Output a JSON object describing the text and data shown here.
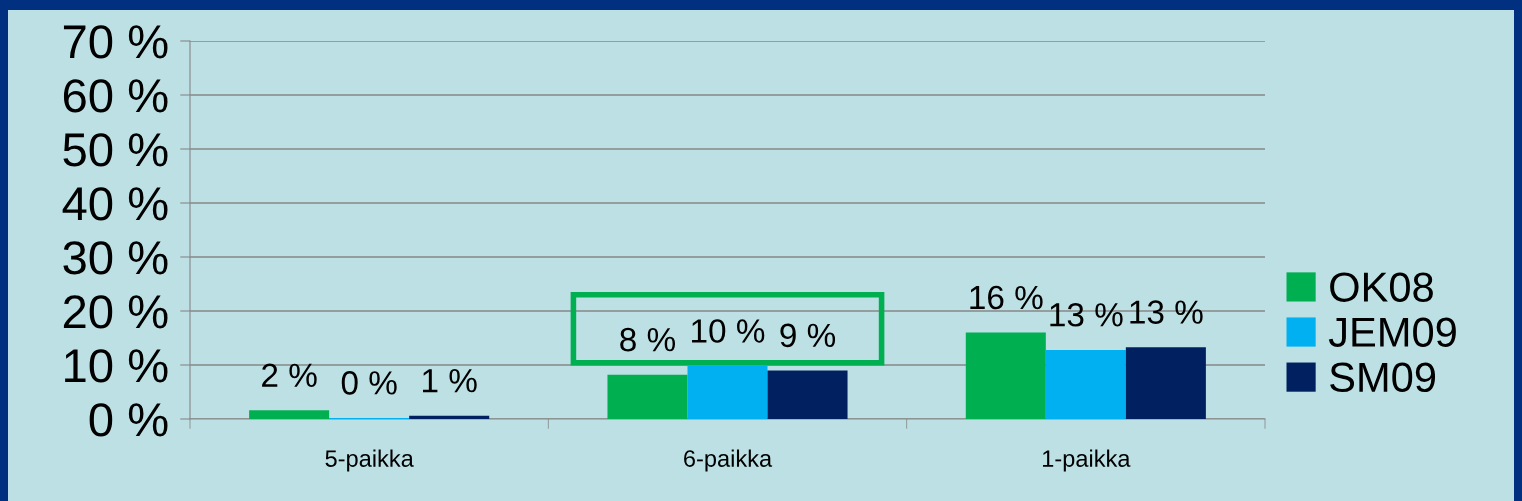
{
  "chart_data": {
    "type": "bar",
    "categories": [
      "5-paikka",
      "6-paikka",
      "1-paikka"
    ],
    "series": [
      {
        "name": "OK08",
        "color": "#00b050",
        "values": [
          1.6,
          8.2,
          16
        ],
        "value_labels": [
          "2 %",
          "8 %",
          "16 %"
        ]
      },
      {
        "name": "JEM09",
        "color": "#00b0f0",
        "values": [
          0.2,
          9.8,
          12.8
        ],
        "value_labels": [
          "0 %",
          "10 %",
          "13 %"
        ]
      },
      {
        "name": "SM09",
        "color": "#002060",
        "values": [
          0.6,
          9,
          13.3
        ],
        "value_labels": [
          "1 %",
          "9 %",
          "13 %"
        ]
      }
    ],
    "ylim": [
      0,
      70
    ],
    "yticks": [
      {
        "value": 0,
        "label": "0 %"
      },
      {
        "value": 10,
        "label": "10 %"
      },
      {
        "value": 20,
        "label": "20 %"
      },
      {
        "value": 30,
        "label": "30 %"
      },
      {
        "value": 40,
        "label": "40 %"
      },
      {
        "value": 50,
        "label": "50 %"
      },
      {
        "value": 60,
        "label": "60 %"
      },
      {
        "value": 70,
        "label": "70 %"
      }
    ],
    "grid": "y",
    "legend": "right"
  }
}
